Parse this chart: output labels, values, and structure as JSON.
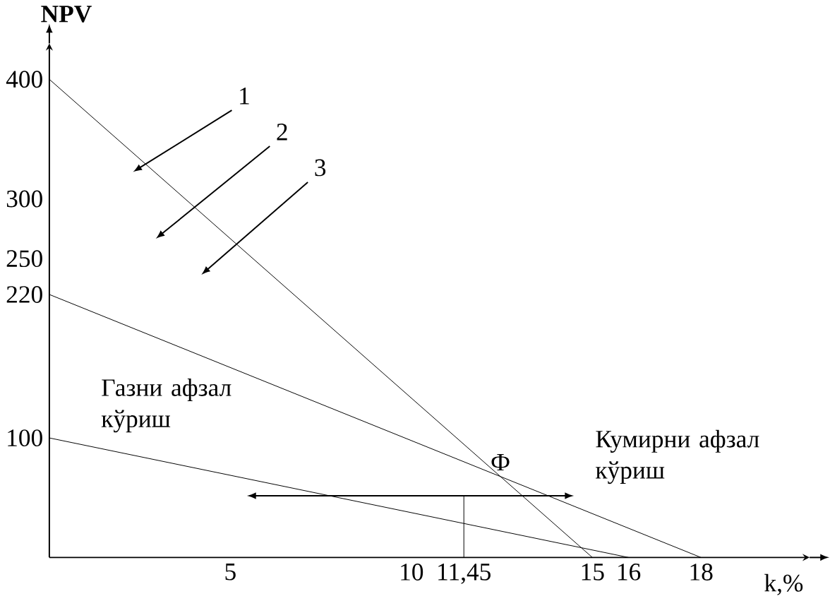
{
  "chart_data": {
    "type": "line",
    "xlabel": "k,%",
    "ylabel": "NPV",
    "xlim": [
      0,
      21
    ],
    "ylim": [
      0,
      430
    ],
    "xticks": [
      5,
      10,
      {
        "value": 11.45,
        "label": "11,45"
      },
      15,
      16,
      18
    ],
    "yticks": [
      100,
      220,
      250,
      300,
      400
    ],
    "series": [
      {
        "color": "#000000",
        "x": [
          0,
          15
        ],
        "values": [
          400,
          0
        ]
      },
      {
        "color": "#000000",
        "x": [
          0,
          18
        ],
        "values": [
          220,
          0
        ]
      },
      {
        "color": "#000000",
        "x": [
          0,
          16
        ],
        "values": [
          100,
          0
        ]
      }
    ],
    "ref_lines": [
      {
        "axis": "x",
        "value": 11.45,
        "color": "#000000"
      }
    ],
    "annotations": [
      "Газни афзал кўриш",
      "Кумирни афзал кўриш",
      {
        "text": "Ф",
        "x": 12.46,
        "y": 67.7
      },
      "1",
      "2",
      "3"
    ],
    "grid": false,
    "marker": "none",
    "line_style": "solid"
  }
}
